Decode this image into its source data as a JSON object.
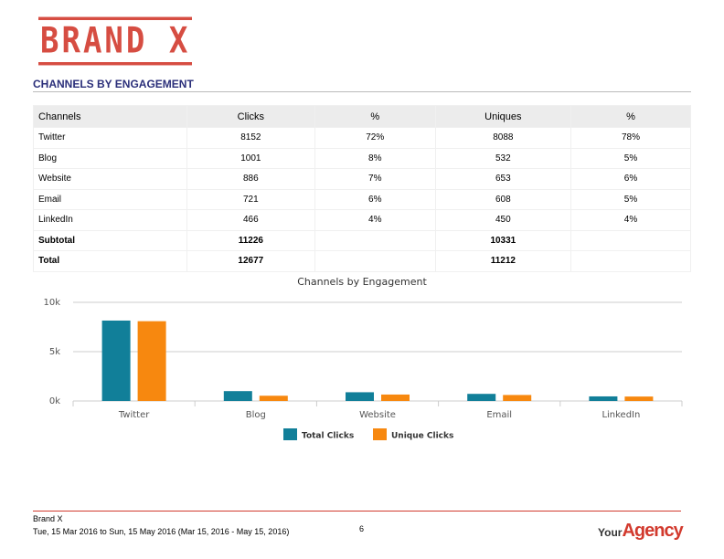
{
  "header": {
    "logo": "BRAND X",
    "section_title": "CHANNELS BY ENGAGEMENT"
  },
  "table": {
    "columns": [
      "Channels",
      "Clicks",
      "%",
      "Uniques",
      "%"
    ],
    "rows": [
      [
        "Twitter",
        8152,
        "72%",
        8088,
        "78%"
      ],
      [
        "Blog",
        1001,
        "8%",
        532,
        "5%"
      ],
      [
        "Website",
        886,
        "7%",
        653,
        "6%"
      ],
      [
        "Email",
        721,
        "6%",
        608,
        "5%"
      ],
      [
        "LinkedIn",
        466,
        "4%",
        450,
        "4%"
      ],
      [
        "Subtotal",
        11226,
        null,
        10331,
        null
      ],
      [
        "Total",
        12677,
        null,
        11212,
        null
      ]
    ]
  },
  "chart_data": {
    "type": "bar",
    "title": "Channels by Engagement",
    "categories": [
      "Twitter",
      "Blog",
      "Website",
      "Email",
      "LinkedIn"
    ],
    "series": [
      {
        "name": "Total Clicks",
        "color": "#117f99",
        "values": [
          8152,
          1001,
          886,
          721,
          466
        ]
      },
      {
        "name": "Unique Clicks",
        "color": "#f7880f",
        "values": [
          8088,
          532,
          653,
          608,
          450
        ]
      }
    ],
    "ylim": [
      0,
      10000
    ],
    "yticks": [
      {
        "value": 0,
        "label": "0k"
      },
      {
        "value": 5000,
        "label": "5k"
      },
      {
        "value": 10000,
        "label": "10k"
      }
    ],
    "grid": true,
    "legend": "bottom"
  },
  "footer": {
    "company": "Brand X",
    "date_range": "Tue, 15 Mar 2016 to Sun, 15 May 2016 (Mar 15, 2016 - May 15, 2016)",
    "page": "6",
    "agency_your": "Your",
    "agency_name": "Agency"
  }
}
